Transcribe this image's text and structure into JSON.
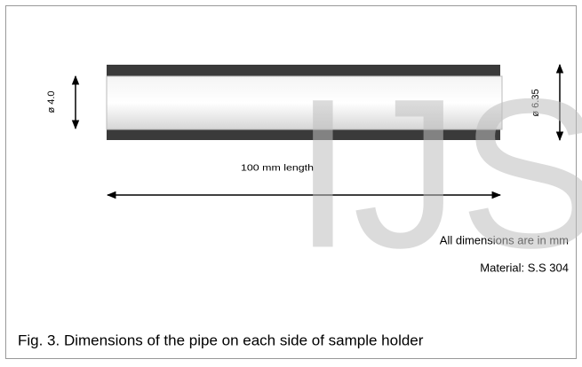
{
  "figure": {
    "left_diameter": "ø 4.0",
    "right_diameter": "ø 6.35",
    "length_label": "100 mm length",
    "note": "All dimensions are in mm",
    "material": "Material: S.S 304",
    "watermark": "IJS",
    "caption": "Fig. 3. Dimensions of the pipe on each side of sample holder"
  }
}
